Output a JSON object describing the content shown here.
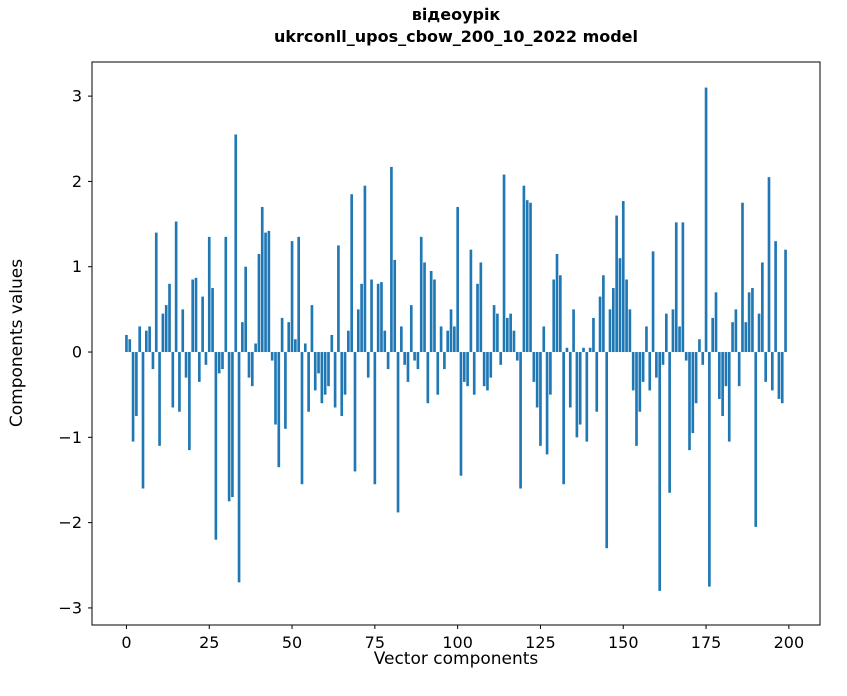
{
  "chart_data": {
    "type": "bar",
    "title_line1": "відеоурік",
    "title_line2": "ukrconll_upos_cbow_200_10_2022 model",
    "xlabel": "Vector components",
    "ylabel": "Components values",
    "xlim": [
      -10.4,
      209.4
    ],
    "ylim": [
      -3.2,
      3.4
    ],
    "xticks": [
      0,
      25,
      50,
      75,
      100,
      125,
      150,
      175,
      200
    ],
    "xticklabels": [
      "0",
      "25",
      "50",
      "75",
      "100",
      "125",
      "150",
      "175",
      "200"
    ],
    "yticks": [
      -3,
      -2,
      -1,
      0,
      1,
      2,
      3
    ],
    "yticklabels": [
      "−3",
      "−2",
      "−1",
      "0",
      "1",
      "2",
      "3"
    ],
    "grid": false,
    "legend": "none",
    "bar_color": "#1f77b4",
    "x_start": 0,
    "values": [
      0.2,
      0.15,
      -1.05,
      -0.75,
      0.3,
      -1.6,
      0.25,
      0.3,
      -0.2,
      1.4,
      -1.1,
      0.45,
      0.55,
      0.8,
      -0.65,
      1.53,
      -0.7,
      0.5,
      -0.3,
      -1.15,
      0.85,
      0.87,
      -0.35,
      0.65,
      -0.15,
      1.35,
      0.75,
      -2.2,
      -0.25,
      -0.2,
      1.35,
      -1.75,
      -1.7,
      2.55,
      -2.7,
      0.35,
      1.0,
      -0.3,
      -0.4,
      0.1,
      1.15,
      1.7,
      1.4,
      1.42,
      -0.1,
      -0.85,
      -1.35,
      0.4,
      -0.9,
      0.35,
      1.3,
      0.15,
      1.35,
      -1.55,
      0.1,
      -0.7,
      0.55,
      -0.45,
      -0.25,
      -0.6,
      -0.5,
      -0.4,
      0.2,
      -0.65,
      1.25,
      -0.75,
      -0.5,
      0.25,
      1.85,
      -1.4,
      0.5,
      0.8,
      1.95,
      -0.3,
      0.85,
      -1.55,
      0.8,
      0.82,
      0.25,
      -0.2,
      2.17,
      1.08,
      -1.88,
      0.3,
      -0.15,
      -0.35,
      0.55,
      -0.1,
      -0.2,
      1.35,
      1.05,
      -0.6,
      0.95,
      0.85,
      -0.5,
      0.3,
      -0.2,
      0.25,
      0.5,
      0.3,
      1.7,
      -1.45,
      -0.35,
      -0.4,
      1.2,
      -0.5,
      0.8,
      1.05,
      -0.4,
      -0.45,
      -0.3,
      0.55,
      0.45,
      -0.15,
      2.08,
      0.4,
      0.45,
      0.25,
      -0.1,
      -1.6,
      1.95,
      1.78,
      1.75,
      -0.35,
      -0.65,
      -1.1,
      0.3,
      -1.2,
      -0.5,
      0.85,
      1.15,
      0.9,
      -1.55,
      0.05,
      -0.65,
      0.5,
      -1.0,
      -0.85,
      0.05,
      -1.05,
      0.05,
      0.4,
      -0.7,
      0.65,
      0.9,
      -2.3,
      0.5,
      0.75,
      1.6,
      1.1,
      1.77,
      0.85,
      0.5,
      -0.45,
      -1.1,
      -0.7,
      -0.35,
      0.3,
      -0.45,
      1.18,
      -0.3,
      -2.8,
      -0.15,
      0.45,
      -1.65,
      0.5,
      1.52,
      0.3,
      1.52,
      -0.1,
      -1.15,
      -0.95,
      -0.6,
      0.15,
      -0.15,
      3.1,
      -2.75,
      0.4,
      0.7,
      -0.55,
      -0.75,
      -0.4,
      -1.05,
      0.35,
      0.5,
      -0.4,
      1.75,
      0.35,
      0.7,
      0.75,
      -2.05,
      0.45,
      1.05,
      -0.35,
      2.05,
      -0.45,
      1.3,
      -0.55,
      -0.6,
      1.2
    ]
  }
}
